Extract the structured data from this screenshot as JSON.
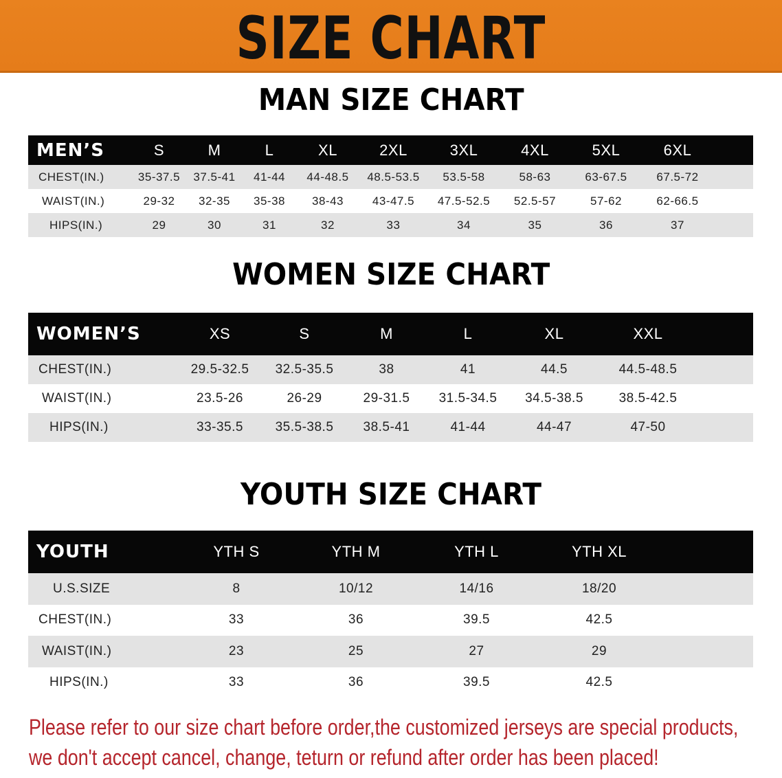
{
  "banner_title": "SIZE CHART",
  "colors": {
    "banner": "#e9821f",
    "header_row": "#070707",
    "alt_row": "#e3e3e3",
    "note_text": "#b5252c"
  },
  "mens": {
    "title": "MAN SIZE CHART",
    "header": [
      "MEN’S",
      "S",
      "M",
      "L",
      "XL",
      "2XL",
      "3XL",
      "4XL",
      "5XL",
      "6XL"
    ],
    "rows": [
      {
        "label": "CHEST(IN.)",
        "values": [
          "35-37.5",
          "37.5-41",
          "41-44",
          "44-48.5",
          "48.5-53.5",
          "53.5-58",
          "58-63",
          "63-67.5",
          "67.5-72"
        ]
      },
      {
        "label": "WAIST(IN.)",
        "values": [
          "29-32",
          "32-35",
          "35-38",
          "38-43",
          "43-47.5",
          "47.5-52.5",
          "52.5-57",
          "57-62",
          "62-66.5"
        ]
      },
      {
        "label": "HIPS(IN.)",
        "values": [
          "29",
          "30",
          "31",
          "32",
          "33",
          "34",
          "35",
          "36",
          "37"
        ]
      }
    ]
  },
  "womens": {
    "title": "WOMEN SIZE CHART",
    "header": [
      "WOMEN’S",
      "XS",
      "S",
      "M",
      "L",
      "XL",
      "XXL"
    ],
    "rows": [
      {
        "label": "CHEST(IN.)",
        "values": [
          "29.5-32.5",
          "32.5-35.5",
          "38",
          "41",
          "44.5",
          "44.5-48.5"
        ]
      },
      {
        "label": "WAIST(IN.)",
        "values": [
          "23.5-26",
          "26-29",
          "29-31.5",
          "31.5-34.5",
          "34.5-38.5",
          "38.5-42.5"
        ]
      },
      {
        "label": "HIPS(IN.)",
        "values": [
          "33-35.5",
          "35.5-38.5",
          "38.5-41",
          "41-44",
          "44-47",
          "47-50"
        ]
      }
    ]
  },
  "youth": {
    "title": "YOUTH SIZE CHART",
    "header": [
      "YOUTH",
      "YTH S",
      "YTH M",
      "YTH L",
      "YTH XL"
    ],
    "rows": [
      {
        "label": "U.S.SIZE",
        "values": [
          "8",
          "10/12",
          "14/16",
          "18/20"
        ]
      },
      {
        "label": "CHEST(IN.)",
        "values": [
          "33",
          "36",
          "39.5",
          "42.5"
        ]
      },
      {
        "label": "WAIST(IN.)",
        "values": [
          "23",
          "25",
          "27",
          "29"
        ]
      },
      {
        "label": "HIPS(IN.)",
        "values": [
          "33",
          "36",
          "39.5",
          "42.5"
        ]
      }
    ]
  },
  "note": {
    "line1": "Please refer to our size chart before order,the customized jerseys are special products,",
    "line2": "we don't accept cancel, change, teturn or refund after order has been placed!"
  }
}
